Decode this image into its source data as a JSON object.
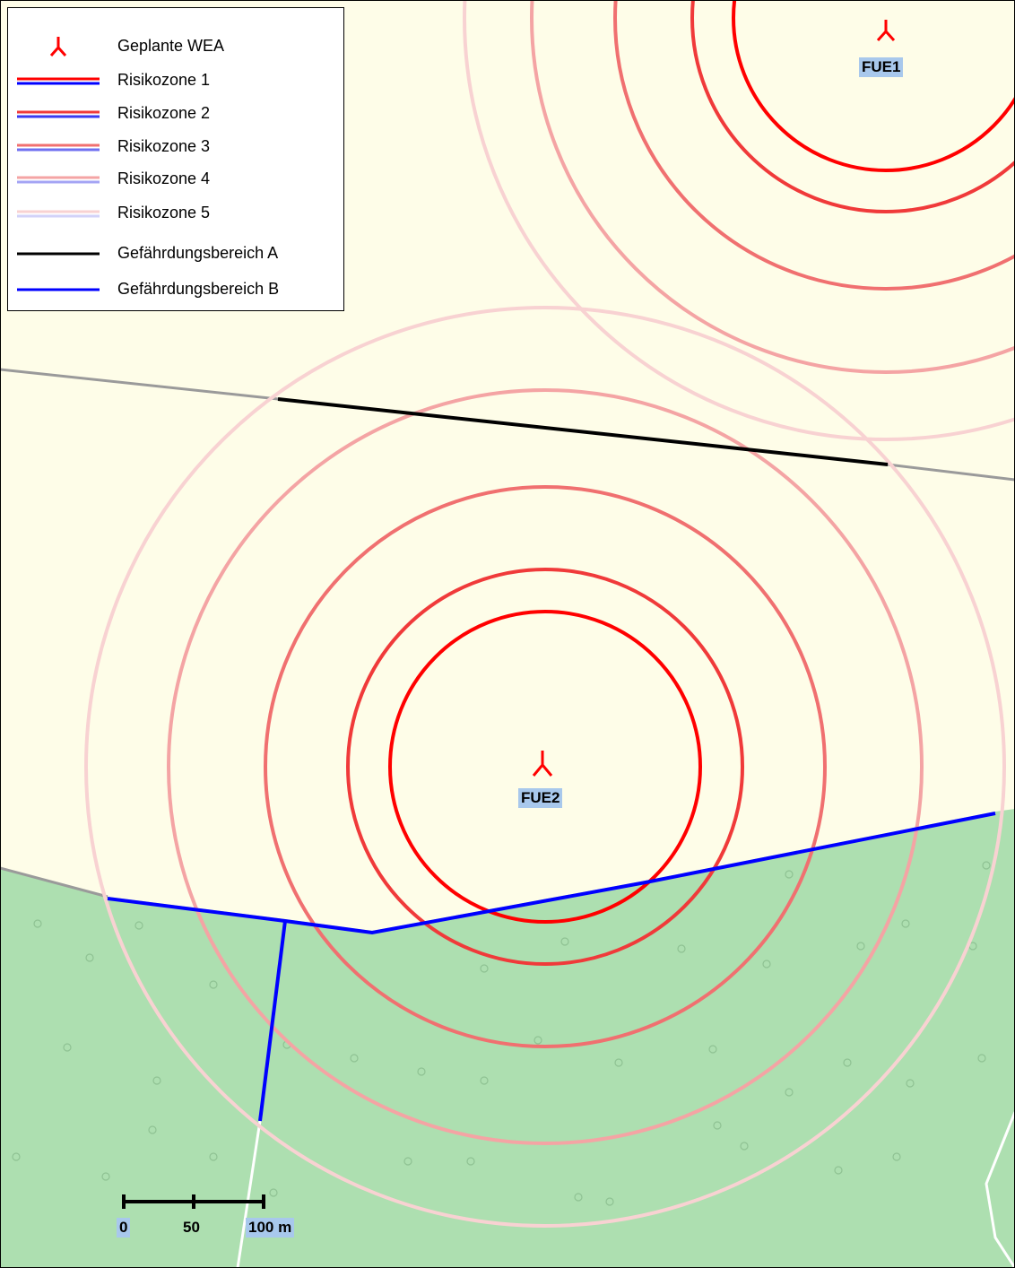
{
  "legend": {
    "items": [
      {
        "label": "Geplante WEA",
        "symbol": "turbine-icon",
        "color": "#ff0000"
      },
      {
        "label": "Risikozone 1",
        "symbol": "double-line",
        "colors": [
          "#ff0000",
          "#0000ff"
        ]
      },
      {
        "label": "Risikozone 2",
        "symbol": "double-line",
        "colors": [
          "#f03a3a",
          "#3a3af0"
        ]
      },
      {
        "label": "Risikozone 3",
        "symbol": "double-line",
        "colors": [
          "#f07070",
          "#7070f0"
        ]
      },
      {
        "label": "Risikozone 4",
        "symbol": "double-line",
        "colors": [
          "#f4a4a4",
          "#a4a4f4"
        ]
      },
      {
        "label": "Risikozone 5",
        "symbol": "double-line",
        "colors": [
          "#f8d2d2",
          "#d2d2f8"
        ]
      },
      {
        "label": "Gefährdungsbereich A",
        "symbol": "line",
        "colors": [
          "#000000"
        ]
      },
      {
        "label": "Gefährdungsbereich B",
        "symbol": "line",
        "colors": [
          "#0000ff"
        ]
      }
    ]
  },
  "turbines": [
    {
      "id": "FUE1"
    },
    {
      "id": "FUE2"
    }
  ],
  "scalebar": {
    "ticks": [
      "0",
      "50",
      "100 m"
    ]
  },
  "colors": {
    "open_land": "#fefde8",
    "forest": "#addfb0",
    "turbine": "#ff0000",
    "zone1": "#ff0000",
    "zone2": "#f03a3a",
    "zone3": "#f07070",
    "zone4": "#f4a4a4",
    "zone5": "#f8d2d2",
    "area_a": "#000000",
    "area_b": "#0000ff"
  }
}
